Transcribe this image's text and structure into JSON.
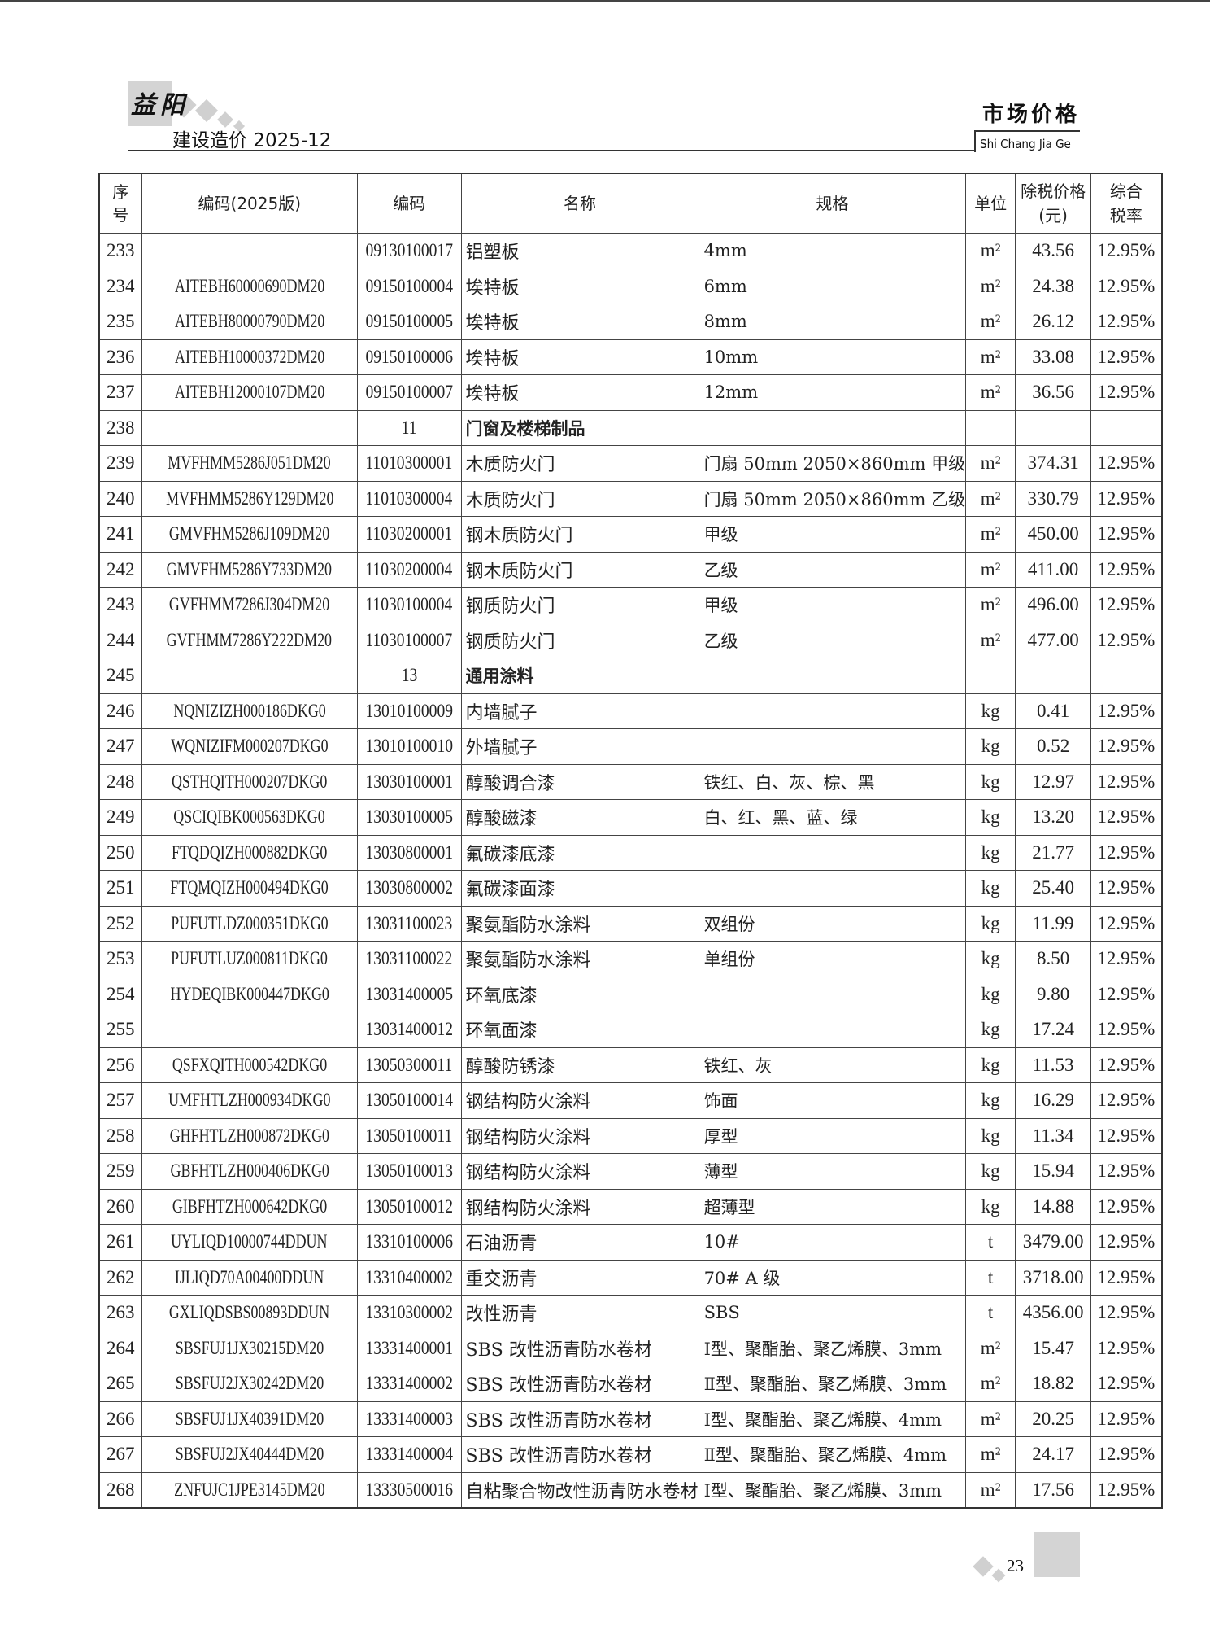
{
  "header": {
    "logo": "益阳",
    "issue": "建设造价 2025-12",
    "section_title": "市场价格",
    "section_pinyin": "Shi Chang Jia Ge"
  },
  "table": {
    "columns": [
      "序号",
      "编码(2025版)",
      "编码",
      "名称",
      "规格",
      "单位",
      "除税价格(元)",
      "综合税率"
    ],
    "rows": [
      {
        "no": "233",
        "code2025": "",
        "code": "09130100017",
        "name": "铝塑板",
        "spec": "4mm",
        "unit": "m²",
        "price": "43.56",
        "rate": "12.95%"
      },
      {
        "no": "234",
        "code2025": "AITEBH60000690DM20",
        "code": "09150100004",
        "name": "埃特板",
        "spec": "6mm",
        "unit": "m²",
        "price": "24.38",
        "rate": "12.95%"
      },
      {
        "no": "235",
        "code2025": "AITEBH80000790DM20",
        "code": "09150100005",
        "name": "埃特板",
        "spec": "8mm",
        "unit": "m²",
        "price": "26.12",
        "rate": "12.95%"
      },
      {
        "no": "236",
        "code2025": "AITEBH10000372DM20",
        "code": "09150100006",
        "name": "埃特板",
        "spec": "10mm",
        "unit": "m²",
        "price": "33.08",
        "rate": "12.95%"
      },
      {
        "no": "237",
        "code2025": "AITEBH12000107DM20",
        "code": "09150100007",
        "name": "埃特板",
        "spec": "12mm",
        "unit": "m²",
        "price": "36.56",
        "rate": "12.95%"
      },
      {
        "no": "238",
        "code2025": "",
        "code": "11",
        "name": "门窗及楼梯制品",
        "spec": "",
        "unit": "",
        "price": "",
        "rate": "",
        "category": true
      },
      {
        "no": "239",
        "code2025": "MVFHMM5286J051DM20",
        "code": "11010300001",
        "name": "木质防火门",
        "spec": "门扇 50mm 2050×860mm 甲级",
        "unit": "m²",
        "price": "374.31",
        "rate": "12.95%"
      },
      {
        "no": "240",
        "code2025": "MVFHMM5286Y129DM20",
        "code": "11010300004",
        "name": "木质防火门",
        "spec": "门扇 50mm 2050×860mm 乙级",
        "unit": "m²",
        "price": "330.79",
        "rate": "12.95%"
      },
      {
        "no": "241",
        "code2025": "GMVFHM5286J109DM20",
        "code": "11030200001",
        "name": "钢木质防火门",
        "spec": "甲级",
        "unit": "m²",
        "price": "450.00",
        "rate": "12.95%"
      },
      {
        "no": "242",
        "code2025": "GMVFHM5286Y733DM20",
        "code": "11030200004",
        "name": "钢木质防火门",
        "spec": "乙级",
        "unit": "m²",
        "price": "411.00",
        "rate": "12.95%"
      },
      {
        "no": "243",
        "code2025": "GVFHMM7286J304DM20",
        "code": "11030100004",
        "name": "钢质防火门",
        "spec": "甲级",
        "unit": "m²",
        "price": "496.00",
        "rate": "12.95%"
      },
      {
        "no": "244",
        "code2025": "GVFHMM7286Y222DM20",
        "code": "11030100007",
        "name": "钢质防火门",
        "spec": "乙级",
        "unit": "m²",
        "price": "477.00",
        "rate": "12.95%"
      },
      {
        "no": "245",
        "code2025": "",
        "code": "13",
        "name": "通用涂料",
        "spec": "",
        "unit": "",
        "price": "",
        "rate": "",
        "category": true
      },
      {
        "no": "246",
        "code2025": "NQNIZIZH000186DKG0",
        "code": "13010100009",
        "name": "内墙腻子",
        "spec": "",
        "unit": "kg",
        "price": "0.41",
        "rate": "12.95%"
      },
      {
        "no": "247",
        "code2025": "WQNIZIFM000207DKG0",
        "code": "13010100010",
        "name": "外墙腻子",
        "spec": "",
        "unit": "kg",
        "price": "0.52",
        "rate": "12.95%"
      },
      {
        "no": "248",
        "code2025": "QSTHQITH000207DKG0",
        "code": "13030100001",
        "name": "醇酸调合漆",
        "spec": "铁红、白、灰、棕、黑",
        "unit": "kg",
        "price": "12.97",
        "rate": "12.95%"
      },
      {
        "no": "249",
        "code2025": "QSCIQIBK000563DKG0",
        "code": "13030100005",
        "name": "醇酸磁漆",
        "spec": "白、红、黑、蓝、绿",
        "unit": "kg",
        "price": "13.20",
        "rate": "12.95%"
      },
      {
        "no": "250",
        "code2025": "FTQDQIZH000882DKG0",
        "code": "13030800001",
        "name": "氟碳漆底漆",
        "spec": "",
        "unit": "kg",
        "price": "21.77",
        "rate": "12.95%"
      },
      {
        "no": "251",
        "code2025": "FTQMQIZH000494DKG0",
        "code": "13030800002",
        "name": "氟碳漆面漆",
        "spec": "",
        "unit": "kg",
        "price": "25.40",
        "rate": "12.95%"
      },
      {
        "no": "252",
        "code2025": "PUFUTLDZ000351DKG0",
        "code": "13031100023",
        "name": "聚氨酯防水涂料",
        "spec": "双组份",
        "unit": "kg",
        "price": "11.99",
        "rate": "12.95%"
      },
      {
        "no": "253",
        "code2025": "PUFUTLUZ000811DKG0",
        "code": "13031100022",
        "name": "聚氨酯防水涂料",
        "spec": "单组份",
        "unit": "kg",
        "price": "8.50",
        "rate": "12.95%"
      },
      {
        "no": "254",
        "code2025": "HYDEQIBK000447DKG0",
        "code": "13031400005",
        "name": "环氧底漆",
        "spec": "",
        "unit": "kg",
        "price": "9.80",
        "rate": "12.95%"
      },
      {
        "no": "255",
        "code2025": "",
        "code": "13031400012",
        "name": "环氧面漆",
        "spec": "",
        "unit": "kg",
        "price": "17.24",
        "rate": "12.95%"
      },
      {
        "no": "256",
        "code2025": "QSFXQITH000542DKG0",
        "code": "13050300011",
        "name": "醇酸防锈漆",
        "spec": "铁红、灰",
        "unit": "kg",
        "price": "11.53",
        "rate": "12.95%"
      },
      {
        "no": "257",
        "code2025": "UMFHTLZH000934DKG0",
        "code": "13050100014",
        "name": "钢结构防火涂料",
        "spec": "饰面",
        "unit": "kg",
        "price": "16.29",
        "rate": "12.95%"
      },
      {
        "no": "258",
        "code2025": "GHFHTLZH000872DKG0",
        "code": "13050100011",
        "name": "钢结构防火涂料",
        "spec": "厚型",
        "unit": "kg",
        "price": "11.34",
        "rate": "12.95%"
      },
      {
        "no": "259",
        "code2025": "GBFHTLZH000406DKG0",
        "code": "13050100013",
        "name": "钢结构防火涂料",
        "spec": "薄型",
        "unit": "kg",
        "price": "15.94",
        "rate": "12.95%"
      },
      {
        "no": "260",
        "code2025": "GIBFHTZH000642DKG0",
        "code": "13050100012",
        "name": "钢结构防火涂料",
        "spec": "超薄型",
        "unit": "kg",
        "price": "14.88",
        "rate": "12.95%"
      },
      {
        "no": "261",
        "code2025": "UYLIQD10000744DDUN",
        "code": "13310100006",
        "name": "石油沥青",
        "spec": "10#",
        "unit": "t",
        "price": "3479.00",
        "rate": "12.95%"
      },
      {
        "no": "262",
        "code2025": "IJLIQD70A00400DDUN",
        "code": "13310400002",
        "name": "重交沥青",
        "spec": "70# A 级",
        "unit": "t",
        "price": "3718.00",
        "rate": "12.95%"
      },
      {
        "no": "263",
        "code2025": "GXLIQDSBS00893DDUN",
        "code": "13310300002",
        "name": "改性沥青",
        "spec": "SBS",
        "unit": "t",
        "price": "4356.00",
        "rate": "12.95%"
      },
      {
        "no": "264",
        "code2025": "SBSFUJ1JX30215DM20",
        "code": "13331400001",
        "name": "SBS 改性沥青防水卷材",
        "spec": "Ⅰ型、聚酯胎、聚乙烯膜、3mm",
        "unit": "m²",
        "price": "15.47",
        "rate": "12.95%"
      },
      {
        "no": "265",
        "code2025": "SBSFUJ2JX30242DM20",
        "code": "13331400002",
        "name": "SBS 改性沥青防水卷材",
        "spec": "Ⅱ型、聚酯胎、聚乙烯膜、3mm",
        "unit": "m²",
        "price": "18.82",
        "rate": "12.95%"
      },
      {
        "no": "266",
        "code2025": "SBSFUJ1JX40391DM20",
        "code": "13331400003",
        "name": "SBS 改性沥青防水卷材",
        "spec": "Ⅰ型、聚酯胎、聚乙烯膜、4mm",
        "unit": "m²",
        "price": "20.25",
        "rate": "12.95%"
      },
      {
        "no": "267",
        "code2025": "SBSFUJ2JX40444DM20",
        "code": "13331400004",
        "name": "SBS 改性沥青防水卷材",
        "spec": "Ⅱ型、聚酯胎、聚乙烯膜、4mm",
        "unit": "m²",
        "price": "24.17",
        "rate": "12.95%"
      },
      {
        "no": "268",
        "code2025": "ZNFUJC1JPE3145DM20",
        "code": "13330500016",
        "name": "自粘聚合物改性沥青防水卷材",
        "spec": "Ⅰ型、聚酯胎、聚乙烯膜、3mm",
        "unit": "m²",
        "price": "17.56",
        "rate": "12.95%"
      }
    ]
  },
  "footer": {
    "page_number": "23"
  }
}
